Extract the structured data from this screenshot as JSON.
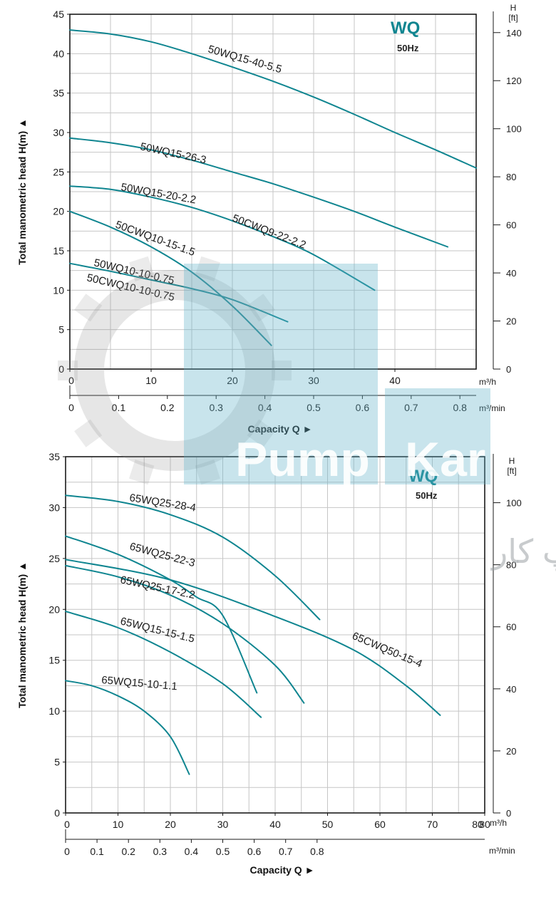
{
  "chart_data": [
    {
      "type": "line",
      "badge": "WQ",
      "frequency": "50Hz",
      "ylabel": "Total manometric head H(m)",
      "ylabel_arrow": "▲",
      "xlabel": "Capacity Q",
      "xlabel_arrow": "►",
      "xlim": [
        0,
        50
      ],
      "ylim": [
        0,
        45
      ],
      "x_ticks": [
        0,
        10,
        20,
        30,
        40
      ],
      "y_ticks": [
        0,
        5,
        10,
        15,
        20,
        25,
        30,
        35,
        40,
        45
      ],
      "x_unit": "m³/h",
      "x2_unit": "m³/min",
      "x2_ticks": [
        "0",
        "0.1",
        "0.2",
        "0.3",
        "0.4",
        "0.5",
        "0.6",
        "0.7",
        "0.8"
      ],
      "x2_tick_values": [
        0,
        0.1,
        0.2,
        0.3,
        0.4,
        0.5,
        0.6,
        0.7,
        0.8
      ],
      "y2_title": "H",
      "y2_unit": "[ft]",
      "y2_ticks": [
        "0",
        "20",
        "40",
        "60",
        "80",
        "100",
        "120",
        "140"
      ],
      "y2_tick_values": [
        0,
        20,
        40,
        60,
        80,
        100,
        120,
        140
      ],
      "grid": true,
      "series": [
        {
          "name": "50WQ15-40-5.5",
          "x": [
            0,
            5,
            10,
            15,
            20,
            25,
            30,
            35,
            40,
            45,
            50
          ],
          "y": [
            43,
            42.5,
            41.5,
            40,
            38.3,
            36.5,
            34.5,
            32.3,
            30,
            27.8,
            25.5
          ]
        },
        {
          "name": "50WQ15-26-3",
          "x": [
            0,
            5,
            10,
            15,
            20,
            25,
            30,
            35,
            40,
            46.5
          ],
          "y": [
            29.3,
            28.7,
            27.8,
            26.5,
            25,
            23.5,
            21.8,
            20,
            18,
            15.5
          ]
        },
        {
          "name": "50WQ15-20-2.2",
          "x": [
            0,
            5,
            10,
            15,
            20,
            25,
            30,
            37.5
          ],
          "y": [
            23.2,
            22.8,
            21.8,
            20.5,
            18.8,
            16.8,
            14.5,
            10
          ]
        },
        {
          "name": "50CWQ10-15-1.5",
          "x": [
            0,
            5,
            10,
            15,
            20,
            24.8
          ],
          "y": [
            20,
            18,
            15.5,
            12.3,
            8,
            3
          ]
        },
        {
          "name": "50WQ10-10-0.75",
          "x": [
            0,
            5,
            10,
            15,
            20,
            26.8
          ],
          "y": [
            13.4,
            12.4,
            11.3,
            10.2,
            8.8,
            6
          ]
        },
        {
          "name": "50CWQ9-22-2.2"
        },
        {
          "name": "50CWQ10-10-0.75"
        }
      ]
    },
    {
      "type": "line",
      "badge": "WQ",
      "frequency": "50Hz",
      "ylabel": "Total manometric head H(m)",
      "ylabel_arrow": "▲",
      "xlabel": "Capacity Q",
      "xlabel_arrow": "►",
      "xlim": [
        0,
        80
      ],
      "ylim": [
        0,
        35
      ],
      "x_ticks": [
        0,
        10,
        20,
        30,
        40,
        50,
        60,
        70,
        80
      ],
      "y_ticks": [
        0,
        5,
        10,
        15,
        20,
        25,
        30,
        35
      ],
      "x_unit": "m³/h",
      "x2_unit": "m³/min",
      "x2_ticks": [
        "0",
        "0.1",
        "0.2",
        "0.3",
        "0.4",
        "0.5",
        "0.6",
        "0.7",
        "0.8"
      ],
      "x2_tick_values": [
        0,
        0.1,
        0.2,
        0.3,
        0.4,
        0.5,
        0.6,
        0.7,
        0.8
      ],
      "y2_title": "H",
      "y2_unit": "[ft]",
      "y2_ticks": [
        "0",
        "20",
        "40",
        "60",
        "80",
        "100"
      ],
      "y2_tick_values": [
        0,
        20,
        40,
        60,
        80,
        100
      ],
      "grid": true,
      "series": [
        {
          "name": "65WQ25-28-4",
          "x": [
            0,
            10,
            20,
            30,
            40,
            48.5
          ],
          "y": [
            31.2,
            30.6,
            29.3,
            27.1,
            23.3,
            19
          ]
        },
        {
          "name": "65WQ25-22-3",
          "x": [
            0,
            10,
            20,
            25,
            30,
            36.5
          ],
          "y": [
            27.2,
            25.4,
            22.9,
            21.2,
            19.4,
            11.8
          ]
        },
        {
          "name": "65WQ25-17-2.2",
          "x": [
            0,
            10,
            20,
            30,
            40,
            45.5
          ],
          "y": [
            24.3,
            23.2,
            21.4,
            18.6,
            14.5,
            10.8
          ]
        },
        {
          "name": "65CWQ50-15-4",
          "x": [
            0,
            20,
            40,
            55,
            65,
            71.5
          ],
          "y": [
            24.9,
            22.9,
            19.3,
            16,
            12.5,
            9.6
          ]
        },
        {
          "name": "65WQ15-15-1.5",
          "x": [
            0,
            10,
            20,
            30,
            37.3
          ],
          "y": [
            19.8,
            18.2,
            15.8,
            12.7,
            9.4
          ]
        },
        {
          "name": "65WQ15-10-1.1",
          "x": [
            0,
            5,
            10,
            15,
            20,
            23.6
          ],
          "y": [
            13,
            12.5,
            11.5,
            10,
            7.5,
            3.8
          ]
        }
      ]
    }
  ],
  "watermark": {
    "word1": "Pump",
    "word2": "Kar",
    "tagline": "گروه صنعتی پمپ کار"
  },
  "colors": {
    "curve": "#0f8590",
    "grid": "#c6c6c6",
    "axis": "#1a1a1a",
    "watermark_teal": "#62b2c8",
    "watermark_gray": "#8f8f8f"
  }
}
